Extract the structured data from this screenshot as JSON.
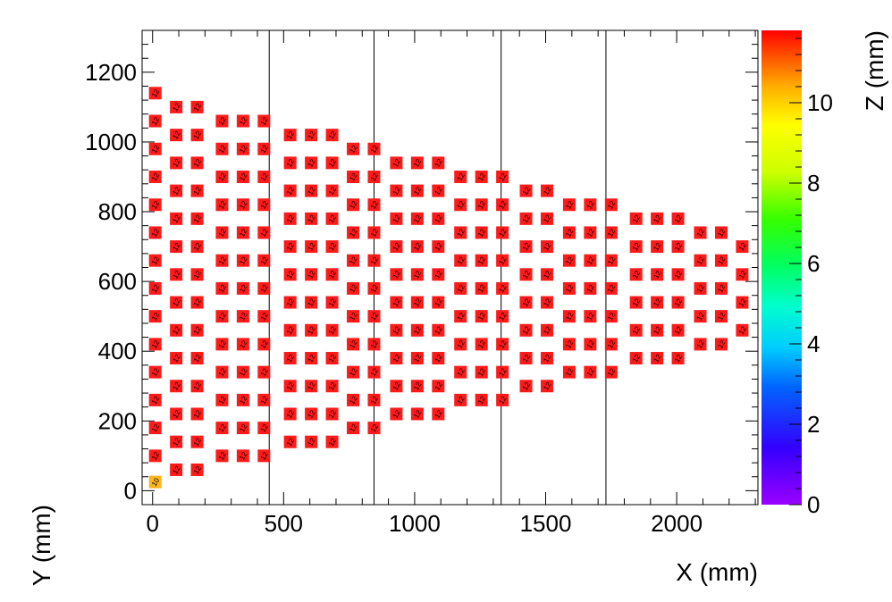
{
  "chart_data": {
    "type": "scatter",
    "xlabel": "X (mm)",
    "ylabel": "Y (mm)",
    "zlabel": "Z (mm)",
    "xlim": [
      -40,
      2310
    ],
    "ylim": [
      -40,
      1320
    ],
    "zlim": [
      0,
      11.8
    ],
    "x_ticks": [
      0,
      500,
      1000,
      1500,
      2000
    ],
    "y_ticks": [
      0,
      200,
      400,
      600,
      800,
      1000,
      1200
    ],
    "z_ticks": [
      0,
      2,
      4,
      6,
      8,
      10
    ],
    "section_lines_x": [
      445,
      845,
      1330,
      1730
    ],
    "marker_colors": {
      "high": "#ff1a1a",
      "low": "#ffb41e"
    },
    "columns": [
      {
        "x": 10,
        "y_start": 100,
        "y_end": 1140,
        "step": 80,
        "z": 11.5
      },
      {
        "x": 90,
        "y_start": 60,
        "y_end": 1100,
        "step": 80,
        "z": 11.5
      },
      {
        "x": 170,
        "y_start": 60,
        "y_end": 1100,
        "step": 80,
        "z": 11.5
      },
      {
        "x": 265,
        "y_start": 100,
        "y_end": 1060,
        "step": 80,
        "z": 11.5
      },
      {
        "x": 345,
        "y_start": 100,
        "y_end": 1060,
        "step": 80,
        "z": 11.5
      },
      {
        "x": 425,
        "y_start": 100,
        "y_end": 1060,
        "step": 80,
        "z": 11.5
      },
      {
        "x": 525,
        "y_start": 140,
        "y_end": 1020,
        "step": 80,
        "z": 11.5
      },
      {
        "x": 605,
        "y_start": 140,
        "y_end": 1020,
        "step": 80,
        "z": 11.5
      },
      {
        "x": 685,
        "y_start": 140,
        "y_end": 1020,
        "step": 80,
        "z": 11.5
      },
      {
        "x": 765,
        "y_start": 180,
        "y_end": 980,
        "step": 80,
        "z": 11.5
      },
      {
        "x": 845,
        "y_start": 180,
        "y_end": 980,
        "step": 80,
        "z": 11.5
      },
      {
        "x": 930,
        "y_start": 220,
        "y_end": 940,
        "step": 80,
        "z": 11.5
      },
      {
        "x": 1010,
        "y_start": 220,
        "y_end": 940,
        "step": 80,
        "z": 11.5
      },
      {
        "x": 1090,
        "y_start": 220,
        "y_end": 940,
        "step": 80,
        "z": 11.5
      },
      {
        "x": 1175,
        "y_start": 260,
        "y_end": 900,
        "step": 80,
        "z": 11.5
      },
      {
        "x": 1255,
        "y_start": 260,
        "y_end": 900,
        "step": 80,
        "z": 11.5
      },
      {
        "x": 1335,
        "y_start": 260,
        "y_end": 900,
        "step": 80,
        "z": 11.5
      },
      {
        "x": 1425,
        "y_start": 300,
        "y_end": 860,
        "step": 80,
        "z": 11.5
      },
      {
        "x": 1505,
        "y_start": 300,
        "y_end": 860,
        "step": 80,
        "z": 11.5
      },
      {
        "x": 1590,
        "y_start": 340,
        "y_end": 820,
        "step": 80,
        "z": 11.5
      },
      {
        "x": 1670,
        "y_start": 340,
        "y_end": 820,
        "step": 80,
        "z": 11.5
      },
      {
        "x": 1750,
        "y_start": 340,
        "y_end": 820,
        "step": 80,
        "z": 11.5
      },
      {
        "x": 1845,
        "y_start": 380,
        "y_end": 780,
        "step": 80,
        "z": 11.5
      },
      {
        "x": 1925,
        "y_start": 380,
        "y_end": 780,
        "step": 80,
        "z": 11.5
      },
      {
        "x": 2005,
        "y_start": 380,
        "y_end": 780,
        "step": 80,
        "z": 11.5
      },
      {
        "x": 2090,
        "y_start": 420,
        "y_end": 740,
        "step": 80,
        "z": 11.5
      },
      {
        "x": 2170,
        "y_start": 420,
        "y_end": 740,
        "step": 80,
        "z": 11.5
      },
      {
        "x": 2250,
        "y_start": 460,
        "y_end": 700,
        "step": 80,
        "z": 11.5
      }
    ],
    "extra_points": [
      {
        "x": 10,
        "y": 25,
        "z": 10.0
      }
    ]
  }
}
